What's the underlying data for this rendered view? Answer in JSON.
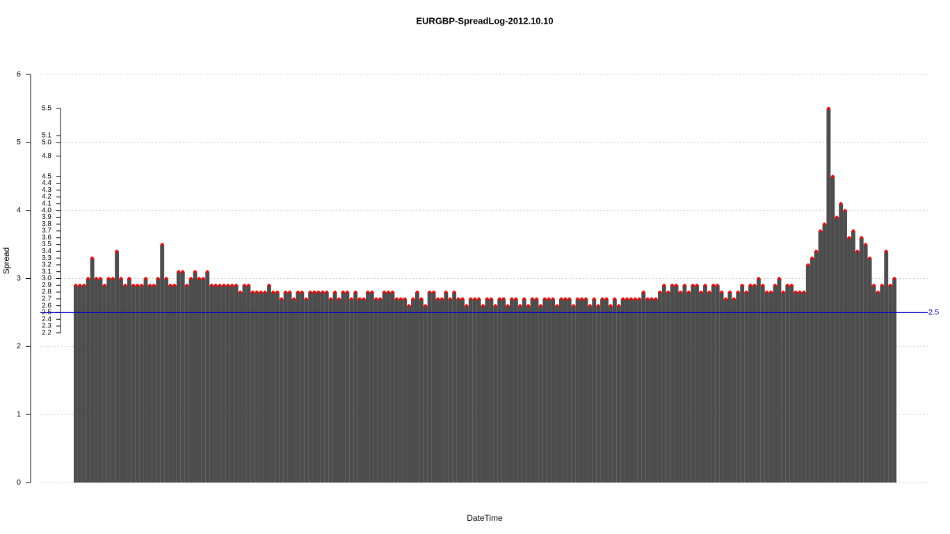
{
  "chart_data": {
    "type": "line-h",
    "title": "EURGBP-SpreadLog-2012.10.10",
    "x_label": "DateTime",
    "y_label": "Spread",
    "ylim": [
      0,
      6
    ],
    "yticks": [
      0,
      1,
      2,
      3,
      4,
      5,
      6
    ],
    "y2ticks": [
      2.2,
      2.3,
      2.4,
      2.5,
      2.6,
      2.7,
      2.8,
      2.9,
      {
        "value": 3,
        "label": "3.0"
      },
      3.1,
      3.2,
      3.3,
      3.4,
      3.5,
      3.6,
      3.7,
      3.8,
      3.9,
      {
        "value": 4,
        "label": "4.0"
      },
      4.1,
      4.2,
      4.3,
      4.4,
      4.5,
      4.8,
      {
        "value": 5,
        "label": "5.0"
      },
      5.1,
      5.5
    ],
    "grid": true,
    "hline": 2.5,
    "hline_color": "#0000cc",
    "bar_color": "#4d4d4d",
    "point_color": "#ff0000",
    "values": [
      2.9,
      2.9,
      2.9,
      3.0,
      3.3,
      3.0,
      3.0,
      2.9,
      3.0,
      3.0,
      3.4,
      3.0,
      2.9,
      3.0,
      2.9,
      2.9,
      2.9,
      3.0,
      2.9,
      2.9,
      3.0,
      3.5,
      3.0,
      2.9,
      2.9,
      3.1,
      3.1,
      2.9,
      3.0,
      3.1,
      3.0,
      3.0,
      3.1,
      2.9,
      2.9,
      2.9,
      2.9,
      2.9,
      2.9,
      2.9,
      2.8,
      2.9,
      2.9,
      2.8,
      2.8,
      2.8,
      2.8,
      2.9,
      2.8,
      2.8,
      2.7,
      2.8,
      2.8,
      2.7,
      2.8,
      2.8,
      2.7,
      2.8,
      2.8,
      2.8,
      2.8,
      2.8,
      2.7,
      2.8,
      2.7,
      2.8,
      2.8,
      2.7,
      2.8,
      2.7,
      2.7,
      2.8,
      2.8,
      2.7,
      2.7,
      2.8,
      2.8,
      2.8,
      2.7,
      2.7,
      2.7,
      2.6,
      2.7,
      2.8,
      2.7,
      2.6,
      2.8,
      2.8,
      2.7,
      2.7,
      2.8,
      2.7,
      2.8,
      2.7,
      2.7,
      2.6,
      2.7,
      2.7,
      2.7,
      2.6,
      2.7,
      2.7,
      2.6,
      2.7,
      2.7,
      2.6,
      2.7,
      2.7,
      2.6,
      2.7,
      2.6,
      2.7,
      2.7,
      2.6,
      2.7,
      2.7,
      2.7,
      2.6,
      2.7,
      2.7,
      2.7,
      2.6,
      2.7,
      2.7,
      2.7,
      2.6,
      2.7,
      2.6,
      2.7,
      2.7,
      2.6,
      2.7,
      2.6,
      2.7,
      2.7,
      2.7,
      2.7,
      2.7,
      2.8,
      2.7,
      2.7,
      2.7,
      2.8,
      2.9,
      2.8,
      2.9,
      2.9,
      2.8,
      2.9,
      2.8,
      2.9,
      2.9,
      2.8,
      2.9,
      2.8,
      2.9,
      2.9,
      2.8,
      2.7,
      2.8,
      2.7,
      2.8,
      2.9,
      2.8,
      2.9,
      2.9,
      3.0,
      2.9,
      2.8,
      2.8,
      2.9,
      3.0,
      2.8,
      2.9,
      2.9,
      2.8,
      2.8,
      2.8,
      3.2,
      3.3,
      3.4,
      3.7,
      3.8,
      5.5,
      4.5,
      3.9,
      4.1,
      4.0,
      3.6,
      3.7,
      3.4,
      3.6,
      3.5,
      3.3,
      2.9,
      2.8,
      2.9,
      3.4,
      2.9,
      3.0
    ]
  }
}
